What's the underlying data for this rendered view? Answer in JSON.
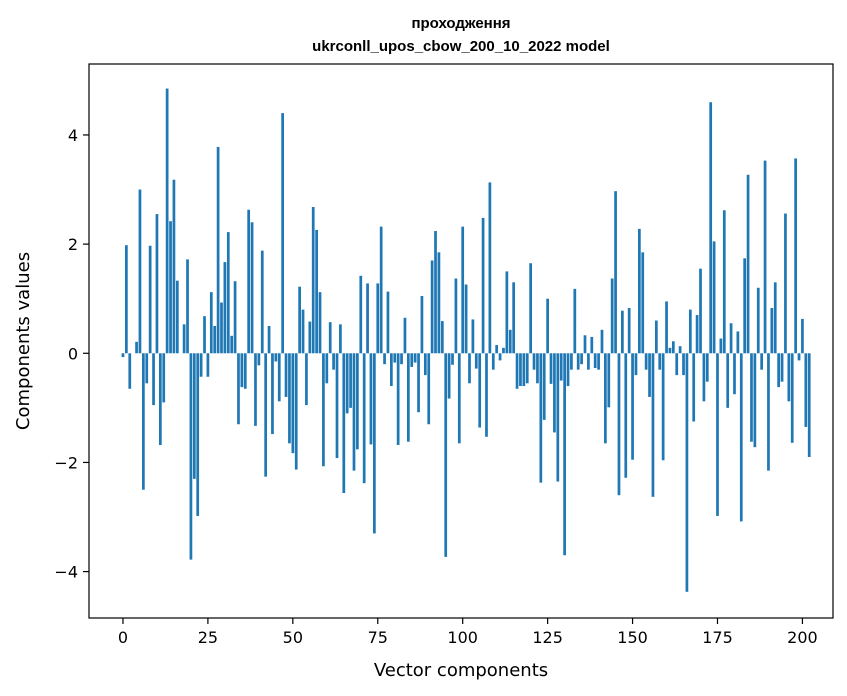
{
  "chart_data": {
    "type": "bar",
    "title": "проходження",
    "subtitle": "ukrconll_upos_cbow_200_10_2022 model",
    "xlabel": "Vector components",
    "ylabel": "Components values",
    "xlim": [
      -10,
      209
    ],
    "ylim": [
      -4.85,
      5.3
    ],
    "x_ticks": [
      0,
      25,
      50,
      75,
      100,
      125,
      150,
      175,
      200
    ],
    "y_ticks": [
      -4,
      -2,
      0,
      2,
      4
    ],
    "y_tick_labels": [
      "−4",
      "−2",
      "0",
      "2",
      "4"
    ],
    "bar_color": "#1f77b4",
    "grid": false,
    "values": [
      -0.07,
      1.98,
      -0.65,
      0.0,
      0.21,
      3.0,
      -2.5,
      -0.55,
      1.97,
      -0.95,
      2.55,
      -1.68,
      -0.9,
      4.85,
      2.42,
      3.18,
      1.33,
      0.0,
      0.53,
      1.72,
      -3.78,
      -2.3,
      -2.98,
      -0.43,
      0.68,
      -0.43,
      1.12,
      0.5,
      3.78,
      0.93,
      1.67,
      2.22,
      0.32,
      1.32,
      -1.3,
      -0.62,
      -0.65,
      2.63,
      2.4,
      -1.33,
      -0.22,
      1.88,
      -2.26,
      0.5,
      -1.48,
      -0.15,
      -0.88,
      4.4,
      -0.8,
      -1.65,
      -1.83,
      -2.13,
      1.22,
      0.8,
      -0.95,
      0.58,
      2.68,
      2.26,
      1.12,
      -2.07,
      -0.55,
      0.57,
      -0.3,
      -1.92,
      0.53,
      -2.56,
      -1.1,
      -1.0,
      -2.15,
      -1.76,
      1.42,
      -2.38,
      1.28,
      -1.67,
      -3.3,
      1.28,
      2.32,
      -0.2,
      1.13,
      -0.6,
      -0.17,
      -1.68,
      -0.2,
      0.65,
      -1.62,
      -0.25,
      -0.17,
      -1.08,
      1.05,
      -0.4,
      -1.3,
      1.7,
      2.24,
      1.85,
      0.59,
      -3.73,
      -0.83,
      -0.21,
      1.37,
      -1.65,
      2.32,
      1.26,
      -0.55,
      0.62,
      -0.28,
      -1.36,
      2.48,
      -1.53,
      3.13,
      -0.3,
      0.15,
      -0.13,
      0.1,
      1.5,
      0.43,
      1.3,
      -0.65,
      -0.6,
      -0.6,
      -0.55,
      1.65,
      -0.3,
      -0.55,
      -2.37,
      -1.22,
      1.0,
      -0.56,
      -1.45,
      -2.35,
      -0.5,
      -3.7,
      -0.6,
      -0.3,
      1.18,
      -0.3,
      -0.2,
      0.33,
      -0.3,
      0.3,
      -0.27,
      -0.3,
      0.43,
      -1.65,
      -0.99,
      1.37,
      2.97,
      -2.6,
      0.78,
      -2.28,
      0.83,
      -1.95,
      -0.4,
      2.28,
      1.85,
      -0.3,
      -0.8,
      -2.63,
      0.6,
      -0.3,
      -1.96,
      0.95,
      0.1,
      0.22,
      -0.4,
      0.13,
      -0.4,
      -4.37,
      0.8,
      -1.25,
      0.7,
      1.55,
      -0.88,
      -0.52,
      4.6,
      2.05,
      -2.98,
      0.27,
      2.62,
      -1.0,
      0.55,
      -0.75,
      0.4,
      -3.08,
      1.74,
      3.27,
      -1.62,
      -1.72,
      1.2,
      -0.3,
      3.53,
      -2.15,
      0.83,
      1.3,
      -0.62,
      -0.52,
      2.56,
      -0.88,
      -1.64,
      3.57,
      -0.13,
      0.63,
      -1.35,
      -1.9
    ]
  }
}
